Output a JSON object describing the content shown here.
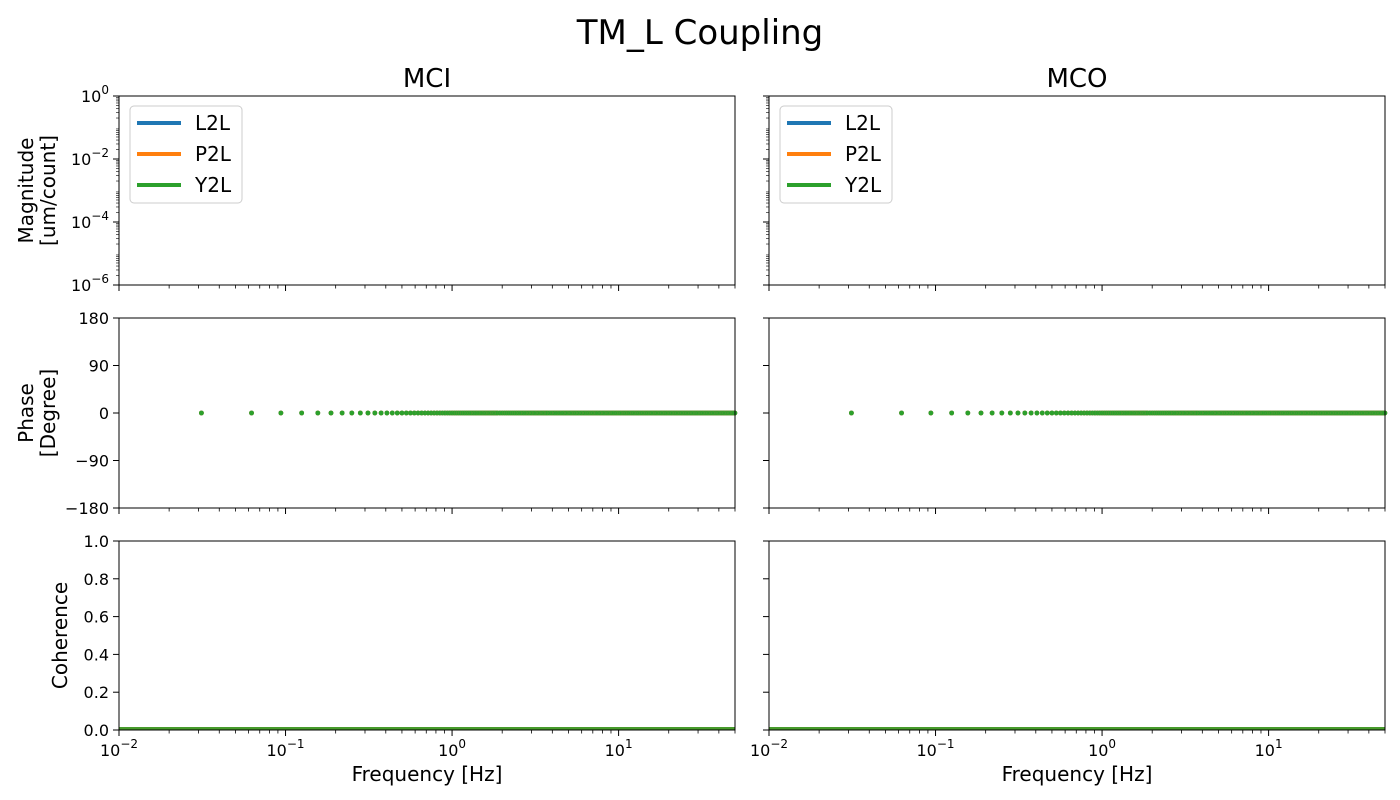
{
  "figure": {
    "suptitle": "TM_L Coupling",
    "columns": [
      "MCI",
      "MCO"
    ],
    "xlabel": "Frequency [Hz]",
    "legend": [
      "L2L",
      "P2L",
      "Y2L"
    ],
    "colors": {
      "L2L": "#1f77b4",
      "P2L": "#ff7f0e",
      "Y2L": "#2ca02c"
    }
  },
  "chart_data": [
    {
      "type": "line",
      "panel": "MCI magnitude",
      "title": "MCI",
      "ylabel": "Magnitude\n[um/count]",
      "xscale": "log",
      "yscale": "log",
      "xlim": [
        0.01,
        50
      ],
      "ylim": [
        1e-06,
        1
      ],
      "yticks": [
        "10^0",
        "10^-2",
        "10^-4",
        "10^-6"
      ],
      "legend_placement": "upper-left",
      "series": [
        {
          "name": "L2L",
          "x": [],
          "y": []
        },
        {
          "name": "P2L",
          "x": [],
          "y": []
        },
        {
          "name": "Y2L",
          "x": [],
          "y": []
        }
      ]
    },
    {
      "type": "line",
      "panel": "MCO magnitude",
      "title": "MCO",
      "xscale": "log",
      "yscale": "log",
      "xlim": [
        0.01,
        50
      ],
      "ylim": [
        1e-06,
        1
      ],
      "legend_placement": "upper-left",
      "series": [
        {
          "name": "L2L",
          "x": [],
          "y": []
        },
        {
          "name": "P2L",
          "x": [],
          "y": []
        },
        {
          "name": "Y2L",
          "x": [],
          "y": []
        }
      ]
    },
    {
      "type": "scatter",
      "panel": "MCI phase",
      "ylabel": "Phase\n[Degree]",
      "xscale": "log",
      "xlim": [
        0.01,
        50
      ],
      "ylim": [
        -180,
        180
      ],
      "yticks": [
        "180",
        "90",
        "0",
        "−90",
        "−180"
      ],
      "points": {
        "x_step": 0.03125,
        "x_max": 50,
        "y": 0
      }
    },
    {
      "type": "scatter",
      "panel": "MCO phase",
      "xscale": "log",
      "xlim": [
        0.01,
        50
      ],
      "ylim": [
        -180,
        180
      ],
      "points": {
        "x_step": 0.03125,
        "x_max": 50,
        "y": 0
      }
    },
    {
      "type": "line",
      "panel": "MCI coherence",
      "ylabel": "Coherence",
      "xlabel": "Frequency [Hz]",
      "xscale": "log",
      "xlim": [
        0.01,
        50
      ],
      "ylim": [
        0,
        1
      ],
      "yticks": [
        "1.0",
        "0.8",
        "0.6",
        "0.4",
        "0.2",
        "0.0"
      ],
      "xticks": [
        "10^-2",
        "10^-1",
        "10^0",
        "10^1"
      ],
      "series": [
        {
          "x": [
            0.01,
            50
          ],
          "y": [
            0,
            0
          ]
        }
      ]
    },
    {
      "type": "line",
      "panel": "MCO coherence",
      "xlabel": "Frequency [Hz]",
      "xscale": "log",
      "xlim": [
        0.01,
        50
      ],
      "ylim": [
        0,
        1
      ],
      "xticks": [
        "10^-2",
        "10^-1",
        "10^0",
        "10^1"
      ],
      "series": [
        {
          "x": [
            0.01,
            50
          ],
          "y": [
            0,
            0
          ]
        }
      ]
    }
  ]
}
